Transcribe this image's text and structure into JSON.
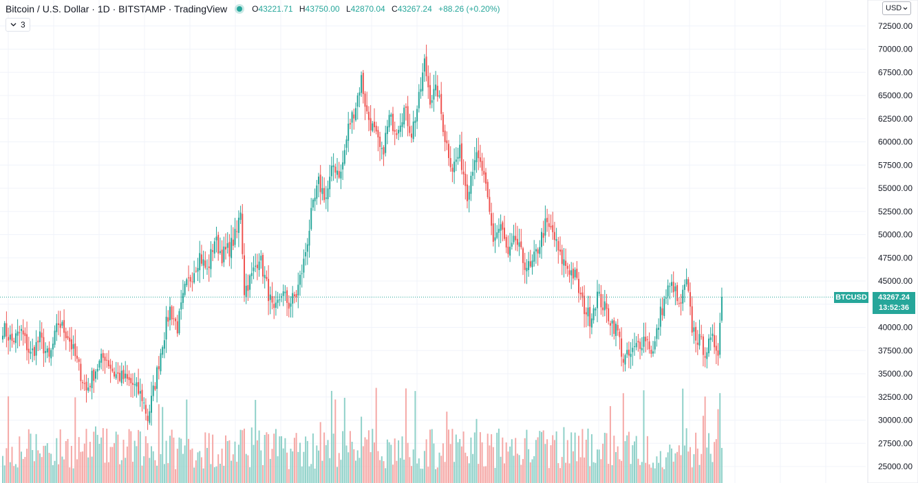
{
  "header": {
    "symbol_title": "Bitcoin / U.S. Dollar · 1D · BITSTAMP · TradingView",
    "ohlc": {
      "open_label": "O",
      "open": "43221.71",
      "high_label": "H",
      "high": "43750.00",
      "low_label": "L",
      "low": "42870.04",
      "close_label": "C",
      "close": "43267.24",
      "change": "+88.26 (+0.20%)"
    },
    "indicators_count": "3"
  },
  "axis": {
    "currency": "USD"
  },
  "last_price": {
    "symbol": "BTCUSD",
    "price": "43267.24",
    "countdown": "13:52:36"
  },
  "colors": {
    "up": "#26a69a",
    "down": "#ef5350",
    "up_volume": "#8fd1c9",
    "down_volume": "#f5a8a6",
    "grid": "#f0f3fa"
  },
  "chart_data": {
    "type": "candlestick",
    "symbol": "BTCUSD",
    "timeframe": "1D",
    "y_range": [
      24000,
      74000
    ],
    "y_ticks": [
      25000,
      27500,
      30000,
      32500,
      35000,
      37500,
      40000,
      42500,
      45000,
      47500,
      50000,
      52500,
      55000,
      57500,
      60000,
      62500,
      65000,
      67500,
      70000,
      72500
    ],
    "y_tick_labels": [
      "25000.00",
      "27500.00",
      "30000.00",
      "32500.00",
      "35000.00",
      "37500.00",
      "40000.00",
      "42500.00",
      "45000.00",
      "47500.00",
      "50000.00",
      "52500.00",
      "55000.00",
      "57500.00",
      "60000.00",
      "62500.00",
      "65000.00",
      "67500.00",
      "70000.00",
      "72500.00"
    ],
    "last_close": 43267.24,
    "close_path_points": [
      [
        0,
        40000
      ],
      [
        5,
        38500
      ],
      [
        10,
        39500
      ],
      [
        15,
        37000
      ],
      [
        20,
        38800
      ],
      [
        25,
        36500
      ],
      [
        30,
        40500
      ],
      [
        35,
        39200
      ],
      [
        40,
        36200
      ],
      [
        45,
        33200
      ],
      [
        50,
        35500
      ],
      [
        55,
        37000
      ],
      [
        60,
        35000
      ],
      [
        65,
        34500
      ],
      [
        70,
        33800
      ],
      [
        75,
        32500
      ],
      [
        78,
        30200
      ],
      [
        82,
        34000
      ],
      [
        86,
        38500
      ],
      [
        90,
        42000
      ],
      [
        94,
        40000
      ],
      [
        98,
        44000
      ],
      [
        102,
        45800
      ],
      [
        106,
        47800
      ],
      [
        110,
        46000
      ],
      [
        114,
        49500
      ],
      [
        118,
        47800
      ],
      [
        122,
        48500
      ],
      [
        126,
        50200
      ],
      [
        128,
        52800
      ],
      [
        130,
        44000
      ],
      [
        134,
        45500
      ],
      [
        138,
        47800
      ],
      [
        142,
        44500
      ],
      [
        146,
        41200
      ],
      [
        150,
        43800
      ],
      [
        154,
        42500
      ],
      [
        158,
        43500
      ],
      [
        162,
        47000
      ],
      [
        166,
        52000
      ],
      [
        170,
        55500
      ],
      [
        174,
        54000
      ],
      [
        178,
        57500
      ],
      [
        182,
        56500
      ],
      [
        186,
        61500
      ],
      [
        190,
        64000
      ],
      [
        193,
        66800
      ],
      [
        196,
        63000
      ],
      [
        200,
        61000
      ],
      [
        204,
        58500
      ],
      [
        208,
        62500
      ],
      [
        212,
        61500
      ],
      [
        216,
        63500
      ],
      [
        220,
        61000
      ],
      [
        224,
        64500
      ],
      [
        227,
        68500
      ],
      [
        230,
        64800
      ],
      [
        234,
        65500
      ],
      [
        238,
        60500
      ],
      [
        242,
        57200
      ],
      [
        246,
        58800
      ],
      [
        250,
        54500
      ],
      [
        254,
        58500
      ],
      [
        258,
        57000
      ],
      [
        261,
        53500
      ],
      [
        264,
        49500
      ],
      [
        268,
        51000
      ],
      [
        272,
        47500
      ],
      [
        276,
        49500
      ],
      [
        280,
        47200
      ],
      [
        284,
        46200
      ],
      [
        288,
        48500
      ],
      [
        292,
        51000
      ],
      [
        296,
        50200
      ],
      [
        300,
        47500
      ],
      [
        304,
        46500
      ],
      [
        308,
        45500
      ],
      [
        312,
        42500
      ],
      [
        316,
        41000
      ],
      [
        320,
        43500
      ],
      [
        324,
        42000
      ],
      [
        328,
        40500
      ],
      [
        331,
        39500
      ],
      [
        334,
        36500
      ],
      [
        338,
        37000
      ],
      [
        342,
        38200
      ],
      [
        346,
        39000
      ],
      [
        350,
        37200
      ],
      [
        354,
        41500
      ],
      [
        358,
        44000
      ],
      [
        361,
        44500
      ],
      [
        364,
        42000
      ],
      [
        368,
        44800
      ],
      [
        371,
        40000
      ],
      [
        374,
        38800
      ],
      [
        378,
        37500
      ],
      [
        382,
        38500
      ],
      [
        385,
        37800
      ],
      [
        387,
        43267
      ]
    ],
    "volume_range_note": "relative"
  }
}
